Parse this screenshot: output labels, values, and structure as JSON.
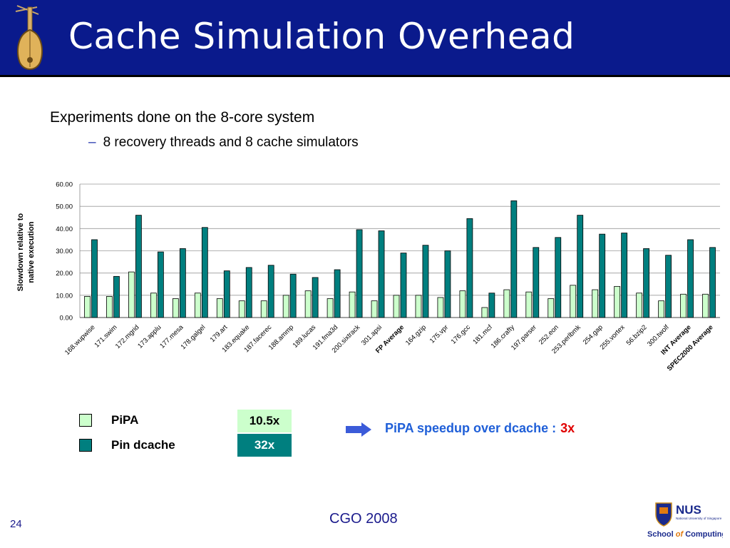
{
  "slide": {
    "title": "Cache Simulation Overhead",
    "bullet": "Experiments done on the 8-core system",
    "sub_bullet": "8 recovery threads and 8 cache simulators",
    "sub_bullet_marker": "–",
    "footer": "CGO 2008",
    "page_number": "24"
  },
  "legend": [
    {
      "label": "PiPA",
      "value": "10.5x",
      "color": "#ccffcc",
      "value_bg": "#ccffcc",
      "value_color": "#000000"
    },
    {
      "label": "Pin dcache",
      "value": "32x",
      "color": "#007f7f",
      "value_bg": "#007f7f",
      "value_color": "#ffffff"
    }
  ],
  "speedup": {
    "text": "PiPA speedup over dcache :",
    "value": "3x"
  },
  "logos": {
    "nus": "NUS",
    "nus_sub": "National University of Singapore",
    "school_prefix": "School",
    "school_of": "of",
    "school_suffix": "Computing"
  },
  "colors": {
    "header_bg": "#0a1a8c",
    "pipa": "#ccffcc",
    "dcache": "#007f7f",
    "accent_blue": "#1f5fd8",
    "accent_red": "#e00000"
  },
  "chart_data": {
    "type": "bar",
    "ylabel": "Slowdown relative to native execution",
    "ylim": [
      0,
      60
    ],
    "yticks": [
      "0.00",
      "10.00",
      "20.00",
      "30.00",
      "40.00",
      "50.00",
      "60.00"
    ],
    "grid": true,
    "categories": [
      "168.wupwise",
      "171.swim",
      "172.mgrid",
      "173.applu",
      "177.mesa",
      "178.galgel",
      "179.art",
      "183.equake",
      "187.facerec",
      "188.ammp",
      "189.lucas",
      "191.fma3d",
      "200.sixtrack",
      "301.apsi",
      "FP Average",
      "164.gzip",
      "175.vpr",
      "176.gcc",
      "181.mcf",
      "186.crafty",
      "197.parser",
      "252.eon",
      "253.perlbmk",
      "254.gap",
      "255.vortex",
      "56.bzip2",
      "300.twolf",
      "INT Average",
      "SPEC2000 Average"
    ],
    "bold_categories": [
      "FP Average",
      "INT Average",
      "SPEC2000 Average"
    ],
    "series": [
      {
        "name": "PiPA",
        "values": [
          9.5,
          9.5,
          20.5,
          11,
          8.5,
          11,
          8.5,
          7.5,
          7.5,
          10,
          12,
          8.5,
          11.5,
          7.5,
          10,
          10,
          9,
          12,
          4.5,
          12.5,
          11.5,
          8.5,
          14.5,
          12.5,
          14,
          11,
          7.5,
          10.5,
          10.5
        ]
      },
      {
        "name": "Pin dcache",
        "values": [
          35,
          18.5,
          46,
          29.5,
          31,
          40.5,
          21,
          22.5,
          23.5,
          19.5,
          18,
          21.5,
          39.5,
          39,
          29,
          32.5,
          30,
          44.5,
          11,
          52.5,
          31.5,
          36,
          46,
          37.5,
          38,
          31,
          28,
          35,
          31.5
        ]
      }
    ]
  }
}
